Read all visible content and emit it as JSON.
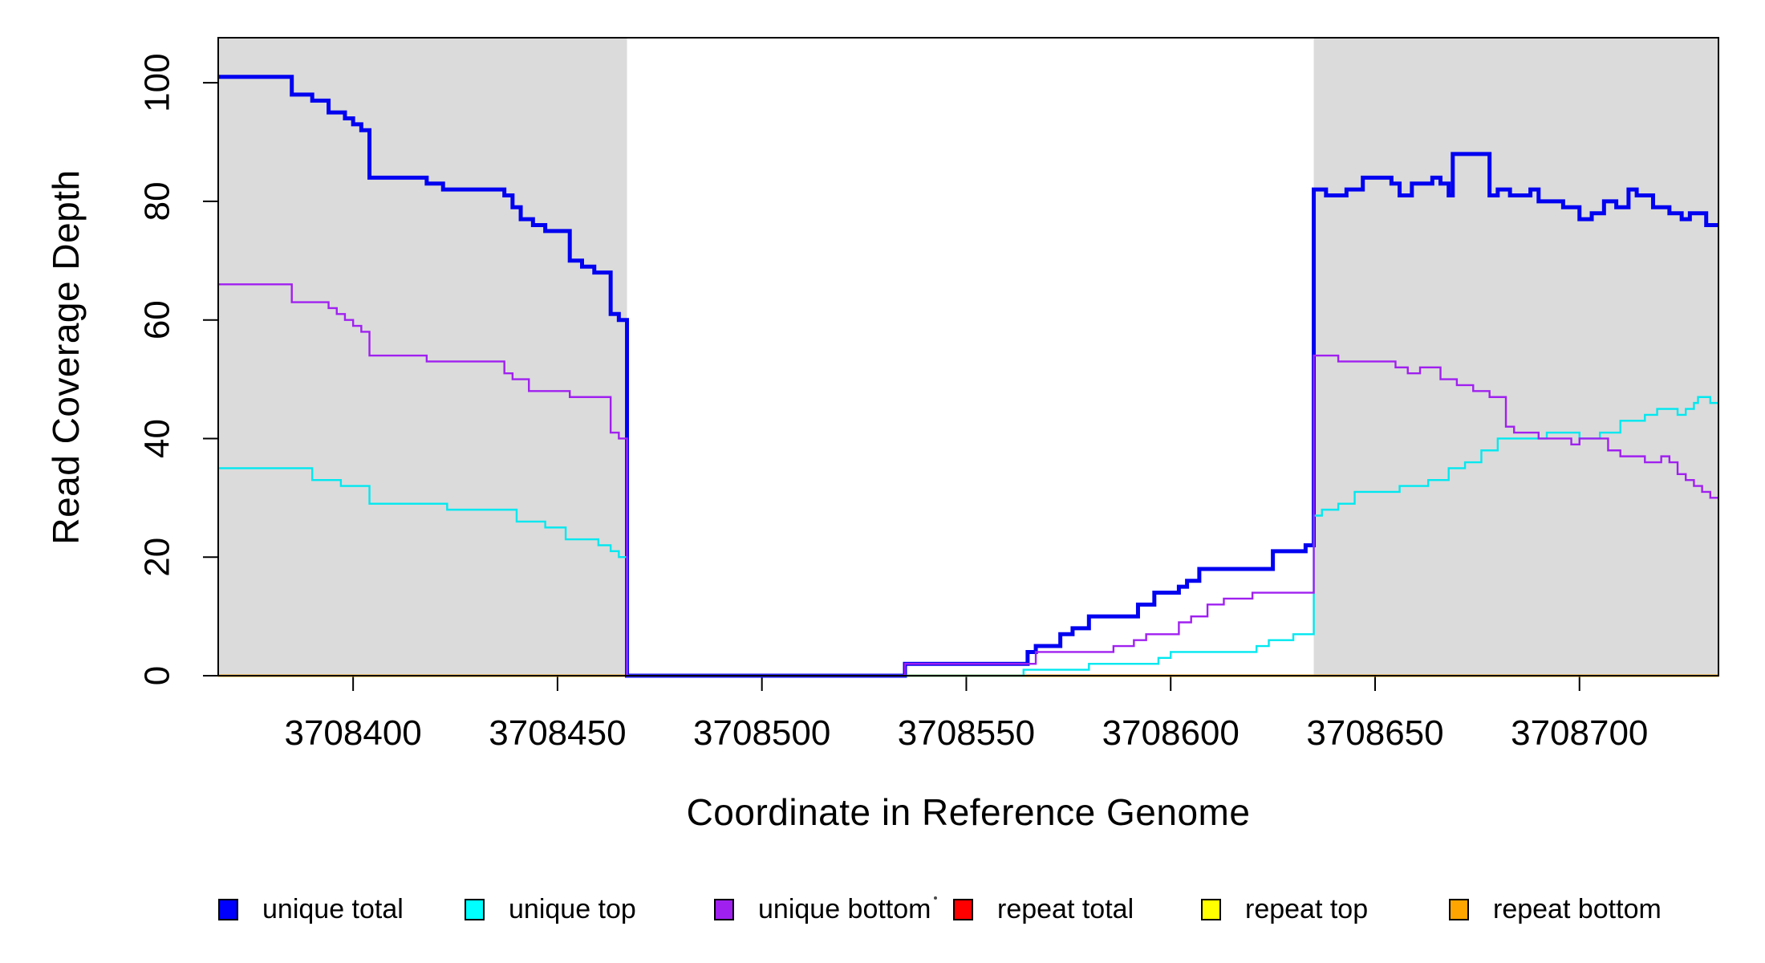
{
  "chart_data": {
    "type": "line",
    "subtype": "step-coverage-plot",
    "title": "",
    "xlabel": "Coordinate in Reference Genome",
    "ylabel": "Read Coverage Depth",
    "x_domain": [
      3708367,
      3708734
    ],
    "y_domain": [
      0,
      107.6
    ],
    "x_ticks": [
      3708400,
      3708450,
      3708500,
      3708550,
      3708600,
      3708650,
      3708700
    ],
    "y_ticks": [
      0,
      20,
      40,
      60,
      80,
      100
    ],
    "grid": false,
    "background_color": "#ffffff",
    "shaded_regions": [
      {
        "name": "left-gray-band",
        "x0": 3708367,
        "x1": 3708467,
        "color": "#DBDBDB"
      },
      {
        "name": "right-gray-band",
        "x0": 3708635,
        "x1": 3708734,
        "color": "#DBDBDB"
      }
    ],
    "series": [
      {
        "name": "repeat total",
        "color": "#FF0000",
        "width": 2.4,
        "points": [
          [
            3708367,
            0
          ]
        ]
      },
      {
        "name": "repeat top",
        "color": "#FFFF00",
        "width": 2.4,
        "points": [
          [
            3708367,
            0
          ]
        ]
      },
      {
        "name": "repeat bottom",
        "color": "#FFA500",
        "width": 2.8,
        "points": [
          [
            3708367,
            0
          ]
        ]
      },
      {
        "name": "unique total",
        "color": "#0202F0",
        "width": 5,
        "points": [
          [
            3708367,
            101
          ],
          [
            3708385,
            98
          ],
          [
            3708390,
            97
          ],
          [
            3708394,
            95
          ],
          [
            3708398,
            94
          ],
          [
            3708400,
            93
          ],
          [
            3708402,
            92
          ],
          [
            3708404,
            84
          ],
          [
            3708418,
            83
          ],
          [
            3708422,
            82
          ],
          [
            3708437,
            81
          ],
          [
            3708439,
            79
          ],
          [
            3708441,
            77
          ],
          [
            3708444,
            76
          ],
          [
            3708447,
            75
          ],
          [
            3708453,
            70
          ],
          [
            3708456,
            69
          ],
          [
            3708459,
            68
          ],
          [
            3708463,
            61
          ],
          [
            3708465,
            60
          ],
          [
            3708467,
            0
          ],
          [
            3708535,
            2
          ],
          [
            3708565,
            4
          ],
          [
            3708567,
            5
          ],
          [
            3708573,
            7
          ],
          [
            3708576,
            8
          ],
          [
            3708580,
            10
          ],
          [
            3708592,
            12
          ],
          [
            3708596,
            14
          ],
          [
            3708602,
            15
          ],
          [
            3708604,
            16
          ],
          [
            3708607,
            18
          ],
          [
            3708625,
            21
          ],
          [
            3708633,
            22
          ],
          [
            3708635,
            82
          ],
          [
            3708638,
            81
          ],
          [
            3708643,
            82
          ],
          [
            3708647,
            84
          ],
          [
            3708654,
            83
          ],
          [
            3708656,
            81
          ],
          [
            3708659,
            83
          ],
          [
            3708664,
            84
          ],
          [
            3708666,
            83
          ],
          [
            3708668,
            81
          ],
          [
            3708669,
            88
          ],
          [
            3708678,
            81
          ],
          [
            3708680,
            82
          ],
          [
            3708683,
            81
          ],
          [
            3708688,
            82
          ],
          [
            3708690,
            80
          ],
          [
            3708696,
            79
          ],
          [
            3708700,
            77
          ],
          [
            3708703,
            78
          ],
          [
            3708706,
            80
          ],
          [
            3708709,
            79
          ],
          [
            3708712,
            82
          ],
          [
            3708714,
            81
          ],
          [
            3708718,
            79
          ],
          [
            3708722,
            78
          ],
          [
            3708725,
            77
          ],
          [
            3708727,
            78
          ],
          [
            3708731,
            76
          ]
        ]
      },
      {
        "name": "unique top",
        "color": "#00E8F0",
        "width": 2.4,
        "points": [
          [
            3708367,
            35
          ],
          [
            3708390,
            33
          ],
          [
            3708397,
            32
          ],
          [
            3708404,
            29
          ],
          [
            3708423,
            28
          ],
          [
            3708440,
            26
          ],
          [
            3708447,
            25
          ],
          [
            3708452,
            23
          ],
          [
            3708460,
            22
          ],
          [
            3708463,
            21
          ],
          [
            3708465,
            20
          ],
          [
            3708467,
            0
          ],
          [
            3708564,
            1
          ],
          [
            3708580,
            2
          ],
          [
            3708597,
            3
          ],
          [
            3708600,
            4
          ],
          [
            3708621,
            5
          ],
          [
            3708624,
            6
          ],
          [
            3708630,
            7
          ],
          [
            3708635,
            27
          ],
          [
            3708637,
            28
          ],
          [
            3708641,
            29
          ],
          [
            3708645,
            31
          ],
          [
            3708656,
            32
          ],
          [
            3708663,
            33
          ],
          [
            3708668,
            35
          ],
          [
            3708672,
            36
          ],
          [
            3708676,
            38
          ],
          [
            3708680,
            40
          ],
          [
            3708692,
            41
          ],
          [
            3708700,
            40
          ],
          [
            3708705,
            41
          ],
          [
            3708710,
            43
          ],
          [
            3708716,
            44
          ],
          [
            3708719,
            45
          ],
          [
            3708724,
            44
          ],
          [
            3708726,
            45
          ],
          [
            3708728,
            46
          ],
          [
            3708729,
            47
          ],
          [
            3708732,
            46
          ]
        ]
      },
      {
        "name": "unique bottom",
        "color": "#A020F0",
        "width": 2.4,
        "points": [
          [
            3708367,
            66
          ],
          [
            3708385,
            63
          ],
          [
            3708394,
            62
          ],
          [
            3708396,
            61
          ],
          [
            3708398,
            60
          ],
          [
            3708400,
            59
          ],
          [
            3708402,
            58
          ],
          [
            3708404,
            54
          ],
          [
            3708418,
            53
          ],
          [
            3708437,
            51
          ],
          [
            3708439,
            50
          ],
          [
            3708443,
            48
          ],
          [
            3708453,
            47
          ],
          [
            3708463,
            41
          ],
          [
            3708465,
            40
          ],
          [
            3708467,
            0
          ],
          [
            3708535,
            2
          ],
          [
            3708567,
            4
          ],
          [
            3708586,
            5
          ],
          [
            3708591,
            6
          ],
          [
            3708594,
            7
          ],
          [
            3708602,
            9
          ],
          [
            3708605,
            10
          ],
          [
            3708609,
            12
          ],
          [
            3708613,
            13
          ],
          [
            3708620,
            14
          ],
          [
            3708635,
            54
          ],
          [
            3708641,
            53
          ],
          [
            3708655,
            52
          ],
          [
            3708658,
            51
          ],
          [
            3708661,
            52
          ],
          [
            3708666,
            50
          ],
          [
            3708670,
            49
          ],
          [
            3708674,
            48
          ],
          [
            3708678,
            47
          ],
          [
            3708682,
            42
          ],
          [
            3708684,
            41
          ],
          [
            3708690,
            40
          ],
          [
            3708698,
            39
          ],
          [
            3708700,
            40
          ],
          [
            3708707,
            38
          ],
          [
            3708710,
            37
          ],
          [
            3708716,
            36
          ],
          [
            3708720,
            37
          ],
          [
            3708722,
            36
          ],
          [
            3708724,
            34
          ],
          [
            3708726,
            33
          ],
          [
            3708728,
            32
          ],
          [
            3708730,
            31
          ],
          [
            3708732,
            30
          ]
        ]
      }
    ],
    "legend_position": "bottom"
  },
  "axes": {
    "x_title": "Coordinate in Reference Genome",
    "y_title": "Read Coverage Depth",
    "x_tick_labels": [
      "3708400",
      "3708450",
      "3708500",
      "3708550",
      "3708600",
      "3708650",
      "3708700"
    ],
    "y_tick_labels": [
      "0",
      "20",
      "40",
      "60",
      "80",
      "100"
    ]
  },
  "legend": {
    "items": [
      {
        "label": "unique total",
        "color": "#0000FF"
      },
      {
        "label": "unique top",
        "color": "#00FFFF"
      },
      {
        "label": "unique bottom",
        "color": "#A020F0"
      },
      {
        "label": "repeat total",
        "color": "#FF0000"
      },
      {
        "label": "repeat top",
        "color": "#FFFF00"
      },
      {
        "label": "repeat bottom",
        "color": "#FFA500"
      }
    ]
  },
  "colors": {
    "axis": "#000000",
    "shaded_band": "#DBDBDB",
    "text": "#000000"
  }
}
